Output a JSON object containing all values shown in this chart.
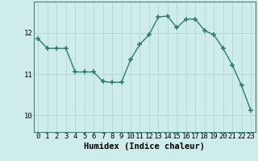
{
  "x": [
    0,
    1,
    2,
    3,
    4,
    5,
    6,
    7,
    8,
    9,
    10,
    11,
    12,
    13,
    14,
    15,
    16,
    17,
    18,
    19,
    20,
    21,
    22,
    23
  ],
  "y": [
    11.85,
    11.62,
    11.62,
    11.62,
    11.05,
    11.05,
    11.05,
    10.82,
    10.8,
    10.8,
    11.35,
    11.72,
    11.95,
    12.38,
    12.4,
    12.12,
    12.33,
    12.33,
    12.05,
    11.95,
    11.62,
    11.22,
    10.72,
    10.12
  ],
  "line_color": "#2e7d6e",
  "marker": "D",
  "marker_size": 2.5,
  "bg_color": "#cdecea",
  "grid_color": "#b8d8d5",
  "xlabel": "Humidex (Indice chaleur)",
  "xlabel_fontsize": 7.5,
  "tick_fontsize": 6.5,
  "yticks": [
    10,
    11,
    12
  ],
  "ylim": [
    9.6,
    12.75
  ],
  "xlim": [
    -0.5,
    23.5
  ],
  "spine_color": "#4a8070"
}
